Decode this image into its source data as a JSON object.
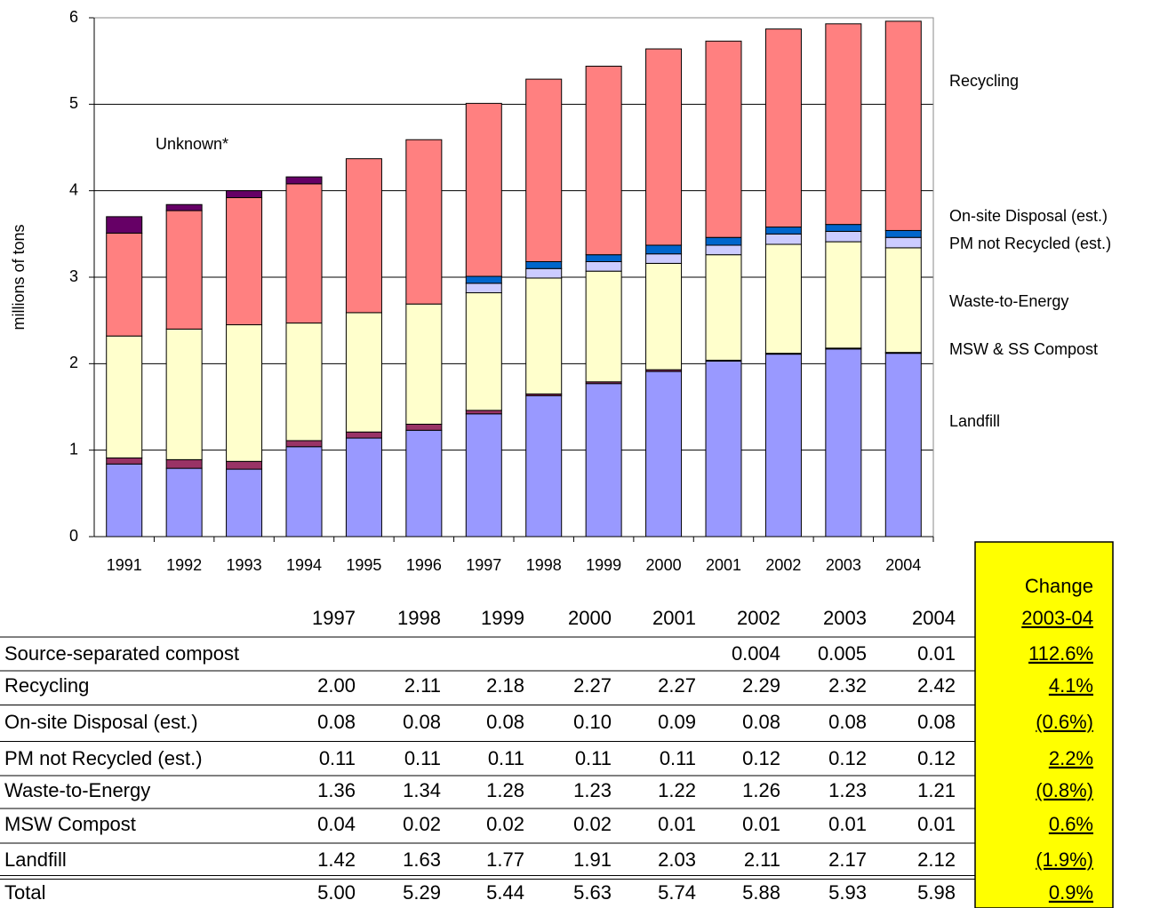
{
  "chart_data": {
    "type": "stacked_bar",
    "y_label": "millions of tons",
    "categories": [
      "1991",
      "1992",
      "1993",
      "1994",
      "1995",
      "1996",
      "1997",
      "1998",
      "1999",
      "2000",
      "2001",
      "2002",
      "2003",
      "2004"
    ],
    "ylim": [
      0,
      6
    ],
    "yticks": [
      0,
      1,
      2,
      3,
      4,
      5,
      6
    ],
    "grid": true,
    "series": [
      {
        "name": "Landfill",
        "color": "#9999ff",
        "values": [
          0.84,
          0.79,
          0.78,
          1.04,
          1.14,
          1.23,
          1.42,
          1.63,
          1.77,
          1.91,
          2.03,
          2.11,
          2.17,
          2.12
        ]
      },
      {
        "name": "MSW & SS Compost",
        "color": "#993366",
        "values": [
          0.07,
          0.1,
          0.09,
          0.07,
          0.07,
          0.07,
          0.04,
          0.02,
          0.02,
          0.02,
          0.01,
          0.01,
          0.01,
          0.01
        ]
      },
      {
        "name": "Waste-to-Energy",
        "color": "#ffffcc",
        "values": [
          1.41,
          1.51,
          1.58,
          1.36,
          1.38,
          1.39,
          1.36,
          1.34,
          1.28,
          1.23,
          1.22,
          1.26,
          1.23,
          1.21
        ]
      },
      {
        "name": "PM not Recycled (est.)",
        "color": "#ccccff",
        "values": [
          null,
          null,
          null,
          null,
          null,
          null,
          0.11,
          0.11,
          0.11,
          0.11,
          0.11,
          0.12,
          0.12,
          0.12
        ]
      },
      {
        "name": "On-site Disposal (est.)",
        "color": "#0066cc",
        "values": [
          null,
          null,
          null,
          null,
          null,
          null,
          0.08,
          0.08,
          0.08,
          0.1,
          0.09,
          0.08,
          0.08,
          0.08
        ]
      },
      {
        "name": "Recycling",
        "color": "#ff8080",
        "values": [
          1.19,
          1.37,
          1.47,
          1.61,
          1.78,
          1.9,
          2.0,
          2.11,
          2.18,
          2.27,
          2.27,
          2.29,
          2.32,
          2.42
        ]
      },
      {
        "name": "Unknown*",
        "color": "#660066",
        "values": [
          0.19,
          0.07,
          0.08,
          0.08,
          null,
          null,
          null,
          null,
          null,
          null,
          null,
          null,
          null,
          null
        ]
      }
    ]
  },
  "table": {
    "years": [
      "1997",
      "1998",
      "1999",
      "2000",
      "2001",
      "2002",
      "2003",
      "2004"
    ],
    "change_title": "Change",
    "change_period": "2003-04",
    "rows": [
      {
        "label": "Source-separated compost",
        "values": [
          null,
          null,
          null,
          null,
          null,
          "0.004",
          "0.005",
          "0.01"
        ],
        "change": "112.6%"
      },
      {
        "label": "Recycling",
        "values": [
          "2.00",
          "2.11",
          "2.18",
          "2.27",
          "2.27",
          "2.29",
          "2.32",
          "2.42"
        ],
        "change": "4.1%"
      },
      {
        "label": "On-site Disposal (est.)",
        "values": [
          "0.08",
          "0.08",
          "0.08",
          "0.10",
          "0.09",
          "0.08",
          "0.08",
          "0.08"
        ],
        "change": "(0.6%)"
      },
      {
        "label": "PM not Recycled (est.)",
        "values": [
          "0.11",
          "0.11",
          "0.11",
          "0.11",
          "0.11",
          "0.12",
          "0.12",
          "0.12"
        ],
        "change": "2.2%"
      },
      {
        "label": "Waste-to-Energy",
        "values": [
          "1.36",
          "1.34",
          "1.28",
          "1.23",
          "1.22",
          "1.26",
          "1.23",
          "1.21"
        ],
        "change": "(0.8%)"
      },
      {
        "label": "MSW Compost",
        "values": [
          "0.04",
          "0.02",
          "0.02",
          "0.02",
          "0.01",
          "0.01",
          "0.01",
          "0.01"
        ],
        "change": "0.6%"
      },
      {
        "label": "Landfill",
        "values": [
          "1.42",
          "1.63",
          "1.77",
          "1.91",
          "2.03",
          "2.11",
          "2.17",
          "2.12"
        ],
        "change": "(1.9%)"
      },
      {
        "label": "Total",
        "values": [
          "5.00",
          "5.29",
          "5.44",
          "5.63",
          "5.74",
          "5.88",
          "5.93",
          "5.98"
        ],
        "change": "0.9%"
      }
    ]
  }
}
